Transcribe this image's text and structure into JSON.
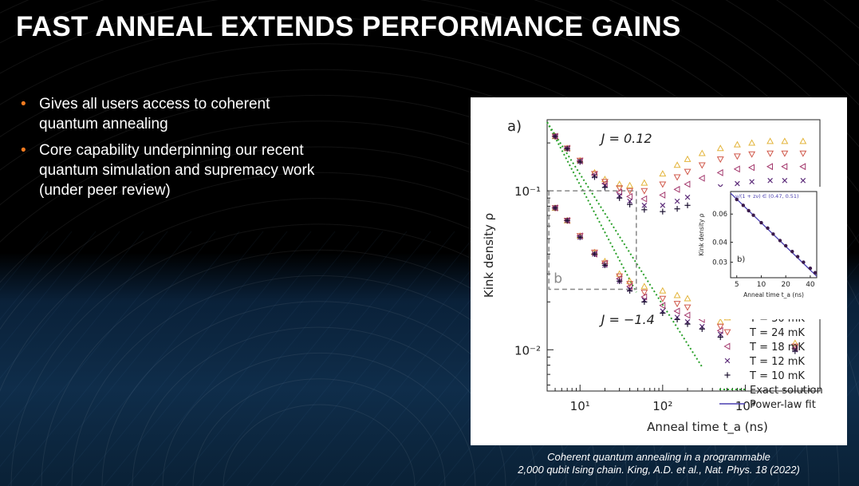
{
  "slide": {
    "title": "FAST ANNEAL EXTENDS PERFORMANCE GAINS",
    "bullets": [
      {
        "line1": "Gives all users access to coherent",
        "line2": "quantum annealing"
      },
      {
        "line1": "Core capability underpinning our recent",
        "line2": "quantum simulation and supremacy work",
        "line3": "(under peer review)"
      }
    ],
    "caption_line1": "Coherent quantum annealing in a programmable",
    "caption_line2": "2,000 qubit Ising chain. King, A.D. et al., Nat. Phys. 18 (2022)",
    "colors": {
      "background": "#000000",
      "accent": "#f47b20",
      "title": "#ffffff"
    }
  },
  "chart_data": {
    "type": "scatter",
    "panel_label": "a)",
    "xlabel": "Anneal time t_a (ns)",
    "ylabel": "Kink density ρ",
    "xscale": "log",
    "yscale": "log",
    "xlim": [
      4,
      8000
    ],
    "ylim": [
      0.0055,
      0.28
    ],
    "x_ticks": [
      {
        "value": 10,
        "label": "10¹"
      },
      {
        "value": 100,
        "label": "10²"
      },
      {
        "value": 1000,
        "label": "10³"
      }
    ],
    "y_ticks": [
      {
        "value": 0.1,
        "label": "10⁻¹"
      },
      {
        "value": 0.01,
        "label": "10⁻²"
      }
    ],
    "annotations": [
      {
        "text": "J = 0.12",
        "x": 18,
        "y": 0.2
      },
      {
        "text": "J = −1.4",
        "x": 18,
        "y": 0.0145
      }
    ],
    "zoom_box": {
      "label": "b",
      "x": [
        4.2,
        48
      ],
      "y": [
        0.024,
        0.1
      ]
    },
    "legend": {
      "placement": "bottom-right",
      "entries": [
        {
          "label": "T = 30 mK",
          "marker": "triangle-up",
          "color": "#e3b43a"
        },
        {
          "label": "T = 24 mK",
          "marker": "triangle-down",
          "color": "#d0584a"
        },
        {
          "label": "T = 18 mK",
          "marker": "triangle-left",
          "color": "#a43a6e"
        },
        {
          "label": "T = 12 mK",
          "marker": "x",
          "color": "#5b2a78"
        },
        {
          "label": "T = 10 mK",
          "marker": "plus",
          "color": "#1a1030"
        },
        {
          "label": "Exact solution",
          "marker": "dotted-line",
          "color": "#2aa02a"
        },
        {
          "label": "Power-law fit",
          "marker": "line",
          "color": "#4a3fb0"
        }
      ]
    },
    "exact_solution": {
      "color": "#2aa02a",
      "lines": [
        {
          "x": [
            4,
            300
          ],
          "y": [
            0.27,
            0.0078
          ]
        },
        {
          "x": [
            4,
            48
          ],
          "y": [
            0.27,
            0.023
          ]
        }
      ]
    },
    "series": [
      {
        "name": "T = 30 mK",
        "group": "J = 0.12",
        "x": [
          5,
          7,
          10,
          15,
          20,
          30,
          40,
          60,
          100,
          150,
          200,
          300,
          500,
          800,
          1200,
          2000,
          3000,
          5000
        ],
        "y": [
          0.22,
          0.185,
          0.155,
          0.13,
          0.118,
          0.11,
          0.108,
          0.112,
          0.128,
          0.145,
          0.158,
          0.172,
          0.185,
          0.195,
          0.2,
          0.205,
          0.205,
          0.205
        ]
      },
      {
        "name": "T = 24 mK",
        "group": "J = 0.12",
        "x": [
          5,
          7,
          10,
          15,
          20,
          30,
          40,
          60,
          100,
          150,
          200,
          300,
          500,
          800,
          1200,
          2000,
          3000,
          5000
        ],
        "y": [
          0.22,
          0.185,
          0.155,
          0.128,
          0.114,
          0.104,
          0.1,
          0.1,
          0.11,
          0.122,
          0.132,
          0.145,
          0.158,
          0.165,
          0.17,
          0.172,
          0.172,
          0.172
        ]
      },
      {
        "name": "T = 18 mK",
        "group": "J = 0.12",
        "x": [
          5,
          7,
          10,
          15,
          20,
          30,
          40,
          60,
          100,
          150,
          200,
          300,
          500,
          800,
          1200,
          2000,
          3000,
          5000
        ],
        "y": [
          0.22,
          0.185,
          0.154,
          0.126,
          0.111,
          0.098,
          0.092,
          0.089,
          0.094,
          0.102,
          0.11,
          0.12,
          0.13,
          0.137,
          0.14,
          0.142,
          0.142,
          0.142
        ]
      },
      {
        "name": "T = 12 mK",
        "group": "J = 0.12",
        "x": [
          5,
          7,
          10,
          15,
          20,
          30,
          40,
          60,
          100,
          150,
          200,
          300,
          500,
          800,
          1200,
          2000,
          3000,
          5000
        ],
        "y": [
          0.22,
          0.184,
          0.153,
          0.124,
          0.108,
          0.093,
          0.086,
          0.081,
          0.081,
          0.086,
          0.091,
          0.098,
          0.106,
          0.111,
          0.114,
          0.116,
          0.116,
          0.116
        ]
      },
      {
        "name": "T = 10 mK",
        "group": "J = 0.12",
        "x": [
          5,
          7,
          10,
          15,
          20,
          30,
          40,
          60,
          100,
          150,
          200,
          300,
          500,
          800,
          1200,
          2000,
          3000,
          5000
        ],
        "y": [
          0.22,
          0.184,
          0.152,
          0.122,
          0.105,
          0.09,
          0.082,
          0.076,
          0.074,
          0.077,
          0.081,
          0.086,
          0.092,
          0.097,
          0.099,
          0.1,
          0.1,
          0.1
        ]
      },
      {
        "name": "T = 30 mK",
        "group": "J = −1.4",
        "x": [
          5,
          7,
          10,
          15,
          20,
          30,
          40,
          60,
          100,
          150,
          200,
          300,
          500,
          4000
        ],
        "y": [
          0.078,
          0.065,
          0.052,
          0.041,
          0.036,
          0.03,
          0.027,
          0.025,
          0.0235,
          0.022,
          0.021,
          0.0195,
          0.015,
          0.011
        ]
      },
      {
        "name": "T = 24 mK",
        "group": "J = −1.4",
        "x": [
          5,
          7,
          10,
          15,
          20,
          30,
          40,
          60,
          100,
          150,
          200,
          300,
          500,
          4000
        ],
        "y": [
          0.078,
          0.065,
          0.052,
          0.041,
          0.035,
          0.029,
          0.026,
          0.023,
          0.021,
          0.0195,
          0.0185,
          0.017,
          0.014,
          0.0105
        ]
      },
      {
        "name": "T = 18 mK",
        "group": "J = −1.4",
        "x": [
          5,
          7,
          10,
          15,
          20,
          30,
          40,
          60,
          100,
          150,
          200,
          300,
          500,
          4000
        ],
        "y": [
          0.078,
          0.065,
          0.052,
          0.04,
          0.035,
          0.028,
          0.025,
          0.0215,
          0.019,
          0.0175,
          0.0165,
          0.0155,
          0.0132,
          0.0102
        ]
      },
      {
        "name": "T = 12 mK",
        "group": "J = −1.4",
        "x": [
          5,
          7,
          10,
          15,
          20,
          30,
          40,
          60,
          100,
          150,
          200,
          300,
          500,
          4000
        ],
        "y": [
          0.078,
          0.065,
          0.051,
          0.04,
          0.034,
          0.027,
          0.024,
          0.0205,
          0.0175,
          0.016,
          0.015,
          0.014,
          0.0125,
          0.01
        ]
      },
      {
        "name": "T = 10 mK",
        "group": "J = −1.4",
        "x": [
          5,
          7,
          10,
          15,
          20,
          30,
          40,
          60,
          100,
          150,
          200,
          300,
          500,
          4000
        ],
        "y": [
          0.078,
          0.065,
          0.051,
          0.04,
          0.034,
          0.027,
          0.0235,
          0.02,
          0.017,
          0.0155,
          0.0145,
          0.0135,
          0.012,
          0.0098
        ]
      }
    ],
    "inset": {
      "label": "b)",
      "title": "ν/(1 + zν) ∈ (0.47, 0.51)",
      "xlabel": "Anneal time t_a (ns)",
      "ylabel": "Kink density ρ",
      "xscale": "log",
      "yscale": "log",
      "xlim": [
        4.2,
        48
      ],
      "ylim": [
        0.024,
        0.083
      ],
      "x_ticks": [
        5,
        10,
        20,
        40
      ],
      "y_ticks": [
        0.03,
        0.04,
        0.06
      ],
      "fit": {
        "x": [
          4.2,
          48
        ],
        "y": [
          0.081,
          0.0245
        ],
        "color": "#4a3fb0"
      },
      "points": {
        "x": [
          5,
          6,
          7,
          8,
          10,
          12,
          14,
          17,
          20,
          24,
          28,
          33,
          40,
          46
        ],
        "y": [
          0.074,
          0.068,
          0.063,
          0.059,
          0.053,
          0.049,
          0.045,
          0.041,
          0.038,
          0.035,
          0.0325,
          0.03,
          0.0275,
          0.0258
        ]
      }
    }
  }
}
